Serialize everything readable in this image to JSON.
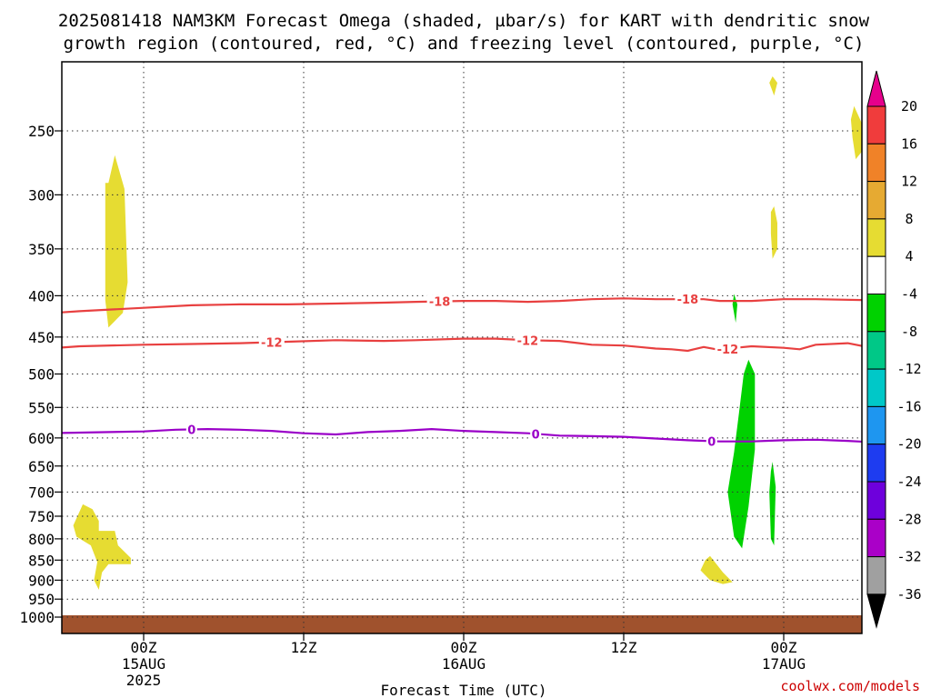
{
  "title_line1": "2025081418 NAM3KM Forecast Omega (shaded, µbar/s) for KART with dendritic snow",
  "title_line2": "growth region (contoured, red, °C) and freezing level (contoured, purple, °C)",
  "credit": "coolwx.com/models",
  "chart_data": {
    "type": "contour",
    "xlabel": "Forecast Time (UTC)",
    "x_range_hours": [
      -10,
      40
    ],
    "x_ticks": [
      {
        "hour": 0,
        "lines": [
          "00Z",
          "15AUG",
          "2025"
        ]
      },
      {
        "hour": 10,
        "lines": [
          "12Z"
        ]
      },
      {
        "hour": 20,
        "lines": [
          "00Z",
          "16AUG"
        ]
      },
      {
        "hour": 30,
        "lines": [
          "12Z"
        ]
      },
      {
        "hour": 40,
        "lines": [
          "00Z",
          "17AUG"
        ]
      }
    ],
    "y_axis": {
      "scale": "log",
      "reversed": true,
      "range_hPa": [
        1025,
        200
      ],
      "ticks": [
        250,
        300,
        350,
        400,
        450,
        500,
        550,
        600,
        650,
        700,
        750,
        800,
        850,
        900,
        950,
        1000
      ]
    },
    "grid": true,
    "colorbar": {
      "labels": [
        "20",
        "16",
        "12",
        "8",
        "4",
        "-4",
        "-8",
        "-12",
        "-16",
        "-20",
        "-24",
        "-28",
        "-32",
        "-36"
      ],
      "colors": [
        "#f03c3c",
        "#f08228",
        "#e6aa32",
        "#e6dc32",
        "#ffffff",
        "#00d200",
        "#00c887",
        "#00c8c8",
        "#1e96f0",
        "#1e3cf0",
        "#6e00dc",
        "#aa00c8",
        "#a0a0a0"
      ],
      "top_arrow_color": "#e6008c",
      "bottom_arrow_color": "#000000"
    },
    "contours": [
      {
        "label": "-18",
        "color": "#e84040",
        "points": [
          [
            -15,
            432
          ],
          [
            -12,
            428
          ],
          [
            -8,
            423
          ],
          [
            -4,
            418
          ],
          [
            0,
            414
          ],
          [
            3,
            411
          ],
          [
            6,
            410
          ],
          [
            9,
            410
          ],
          [
            12,
            409
          ],
          [
            15,
            408
          ],
          [
            17,
            407
          ],
          [
            20,
            406
          ],
          [
            22,
            406
          ],
          [
            24,
            407
          ],
          [
            26,
            406
          ],
          [
            28,
            404
          ],
          [
            30,
            403
          ],
          [
            32,
            404
          ],
          [
            34,
            404
          ],
          [
            35,
            404
          ],
          [
            36,
            406
          ],
          [
            38,
            406
          ],
          [
            40,
            404
          ],
          [
            42,
            404
          ],
          [
            45,
            405
          ],
          [
            48,
            404
          ]
        ],
        "labels_at": [
          18.5,
          34
        ]
      },
      {
        "label": "-12",
        "color": "#e84040",
        "points": [
          [
            -15,
            478
          ],
          [
            -12,
            476
          ],
          [
            -8,
            468
          ],
          [
            -4,
            462
          ],
          [
            0,
            460
          ],
          [
            3,
            459
          ],
          [
            6,
            458
          ],
          [
            9,
            456
          ],
          [
            12,
            454
          ],
          [
            15,
            455
          ],
          [
            17,
            454
          ],
          [
            20,
            452
          ],
          [
            22,
            452
          ],
          [
            24,
            454
          ],
          [
            26,
            455
          ],
          [
            28,
            460
          ],
          [
            30,
            461
          ],
          [
            31,
            463
          ],
          [
            32,
            465
          ],
          [
            33,
            466
          ],
          [
            34,
            468
          ],
          [
            35,
            463
          ],
          [
            36,
            467
          ],
          [
            37,
            464
          ],
          [
            38,
            462
          ],
          [
            40,
            464
          ],
          [
            41,
            466
          ],
          [
            42,
            460
          ],
          [
            44,
            458
          ],
          [
            45,
            462
          ],
          [
            46,
            464
          ],
          [
            48,
            458
          ]
        ],
        "labels_at": [
          8,
          24,
          36.5
        ]
      },
      {
        "label": "0",
        "color": "#9a00c8",
        "points": [
          [
            -15,
            598
          ],
          [
            -12,
            595
          ],
          [
            -8,
            593
          ],
          [
            -4,
            591
          ],
          [
            0,
            589
          ],
          [
            2,
            586
          ],
          [
            4,
            585
          ],
          [
            6,
            586
          ],
          [
            8,
            588
          ],
          [
            10,
            592
          ],
          [
            12,
            594
          ],
          [
            14,
            590
          ],
          [
            16,
            588
          ],
          [
            18,
            585
          ],
          [
            20,
            588
          ],
          [
            22,
            590
          ],
          [
            24,
            592
          ],
          [
            26,
            596
          ],
          [
            28,
            597
          ],
          [
            30,
            598
          ],
          [
            32,
            601
          ],
          [
            34,
            604
          ],
          [
            36,
            606
          ],
          [
            38,
            606
          ],
          [
            40,
            604
          ],
          [
            42,
            603
          ],
          [
            44,
            605
          ],
          [
            46,
            608
          ],
          [
            48,
            614
          ]
        ],
        "labels_at": [
          3,
          24.5,
          35.5
        ]
      }
    ],
    "shaded_regions": [
      {
        "category": "4 to 8",
        "color": "#e6dc32",
        "points": [
          [
            -2.2,
            290
          ],
          [
            -1.8,
            268
          ],
          [
            -1.2,
            295
          ],
          [
            -1.0,
            385
          ],
          [
            -1.3,
            420
          ],
          [
            -2.2,
            438
          ],
          [
            -2.4,
            405
          ],
          [
            -2.4,
            290
          ]
        ]
      },
      {
        "category": "4 to 8",
        "color": "#e6dc32",
        "points": [
          [
            -3.8,
            725
          ],
          [
            -3.2,
            735
          ],
          [
            -2.8,
            760
          ],
          [
            -2.8,
            782
          ],
          [
            -1.8,
            782
          ],
          [
            -1.6,
            815
          ],
          [
            -0.8,
            845
          ],
          [
            -0.8,
            860
          ],
          [
            -2.2,
            860
          ],
          [
            -2.6,
            880
          ],
          [
            -2.8,
            925
          ],
          [
            -3.1,
            900
          ],
          [
            -2.9,
            855
          ],
          [
            -3.3,
            815
          ],
          [
            -4.2,
            795
          ],
          [
            -4.4,
            770
          ]
        ]
      },
      {
        "category": "4 to 8",
        "color": "#e6dc32",
        "points": [
          [
            35.4,
            840
          ],
          [
            35.7,
            855
          ],
          [
            36.2,
            880
          ],
          [
            36.8,
            905
          ],
          [
            36.2,
            910
          ],
          [
            35.4,
            900
          ],
          [
            34.8,
            875
          ],
          [
            35.1,
            850
          ]
        ]
      },
      {
        "category": "4 to 8",
        "color": "#e6dc32",
        "points": [
          [
            39.3,
            214
          ],
          [
            39.6,
            218
          ],
          [
            39.4,
            226
          ],
          [
            39.1,
            218
          ]
        ]
      },
      {
        "category": "4 to 8",
        "color": "#e6dc32",
        "points": [
          [
            39.4,
            310
          ],
          [
            39.6,
            325
          ],
          [
            39.6,
            350
          ],
          [
            39.3,
            360
          ],
          [
            39.2,
            335
          ],
          [
            39.2,
            315
          ]
        ]
      },
      {
        "category": "4 to 8",
        "color": "#e6dc32",
        "points": [
          [
            44.4,
            233
          ],
          [
            44.9,
            245
          ],
          [
            44.9,
            265
          ],
          [
            44.5,
            271
          ],
          [
            44.3,
            255
          ],
          [
            44.2,
            242
          ]
        ]
      },
      {
        "category": "-4 to -8",
        "color": "#00d200",
        "points": [
          [
            36.9,
            398
          ],
          [
            37.1,
            410
          ],
          [
            37.0,
            432
          ],
          [
            36.8,
            410
          ]
        ]
      },
      {
        "category": "-4 to -8",
        "color": "#00d200",
        "points": [
          [
            37.8,
            480
          ],
          [
            38.2,
            500
          ],
          [
            38.2,
            620
          ],
          [
            37.8,
            730
          ],
          [
            37.4,
            822
          ],
          [
            36.9,
            795
          ],
          [
            36.5,
            700
          ],
          [
            36.9,
            625
          ],
          [
            37.2,
            560
          ],
          [
            37.5,
            500
          ]
        ]
      },
      {
        "category": "-4 to -8",
        "color": "#00d200",
        "points": [
          [
            39.3,
            642
          ],
          [
            39.5,
            690
          ],
          [
            39.4,
            815
          ],
          [
            39.2,
            800
          ],
          [
            39.1,
            700
          ],
          [
            39.2,
            660
          ]
        ]
      }
    ],
    "ground": {
      "from_hPa": 1000,
      "color": "#a0522d"
    }
  }
}
